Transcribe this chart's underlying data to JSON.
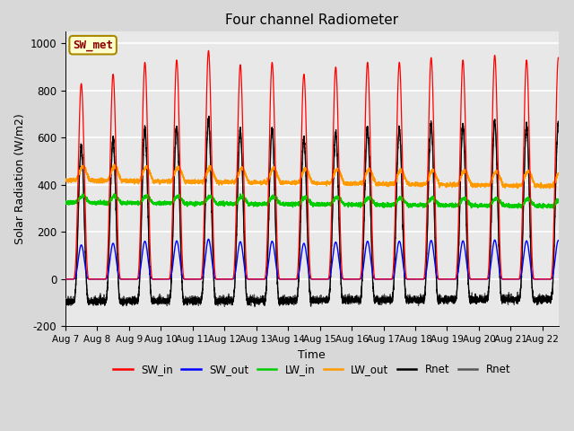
{
  "title": "Four channel Radiometer",
  "xlabel": "Time",
  "ylabel": "Solar Radiation (W/m2)",
  "ylim": [
    -200,
    1050
  ],
  "n_days": 15.5,
  "tick_labels": [
    "Aug 7",
    "Aug 8",
    "Aug 9",
    "Aug 10",
    "Aug 11",
    "Aug 12",
    "Aug 13",
    "Aug 14",
    "Aug 15",
    "Aug 16",
    "Aug 17",
    "Aug 18",
    "Aug 19",
    "Aug 20",
    "Aug 21",
    "Aug 22"
  ],
  "annotation_text": "SW_met",
  "annotation_bg": "#ffffcc",
  "annotation_border": "#aa8800",
  "colors": {
    "SW_in": "#ff0000",
    "SW_out": "#0000ff",
    "LW_in": "#00cc00",
    "LW_out": "#ff9900",
    "Rnet_black": "#000000",
    "Rnet_dark": "#555555"
  },
  "legend_labels": [
    "SW_in",
    "SW_out",
    "LW_in",
    "LW_out",
    "Rnet",
    "Rnet"
  ],
  "legend_colors": [
    "#ff0000",
    "#0000ff",
    "#00cc00",
    "#ff9900",
    "#000000",
    "#555555"
  ],
  "bg_color": "#e8e8e8",
  "grid_color": "#ffffff",
  "SW_in_peaks": [
    830,
    870,
    920,
    930,
    970,
    910,
    920,
    870,
    900,
    920,
    920,
    940,
    930,
    950,
    930,
    940
  ],
  "SW_out_scale": 0.175,
  "LW_in_base": 325,
  "LW_in_amp": 30,
  "LW_out_base": 420,
  "LW_out_amp": 60,
  "Rnet_scale": 0.68,
  "Rnet_night": -100,
  "day_start": 0.25,
  "day_end": 0.75,
  "points_per_day": 288
}
